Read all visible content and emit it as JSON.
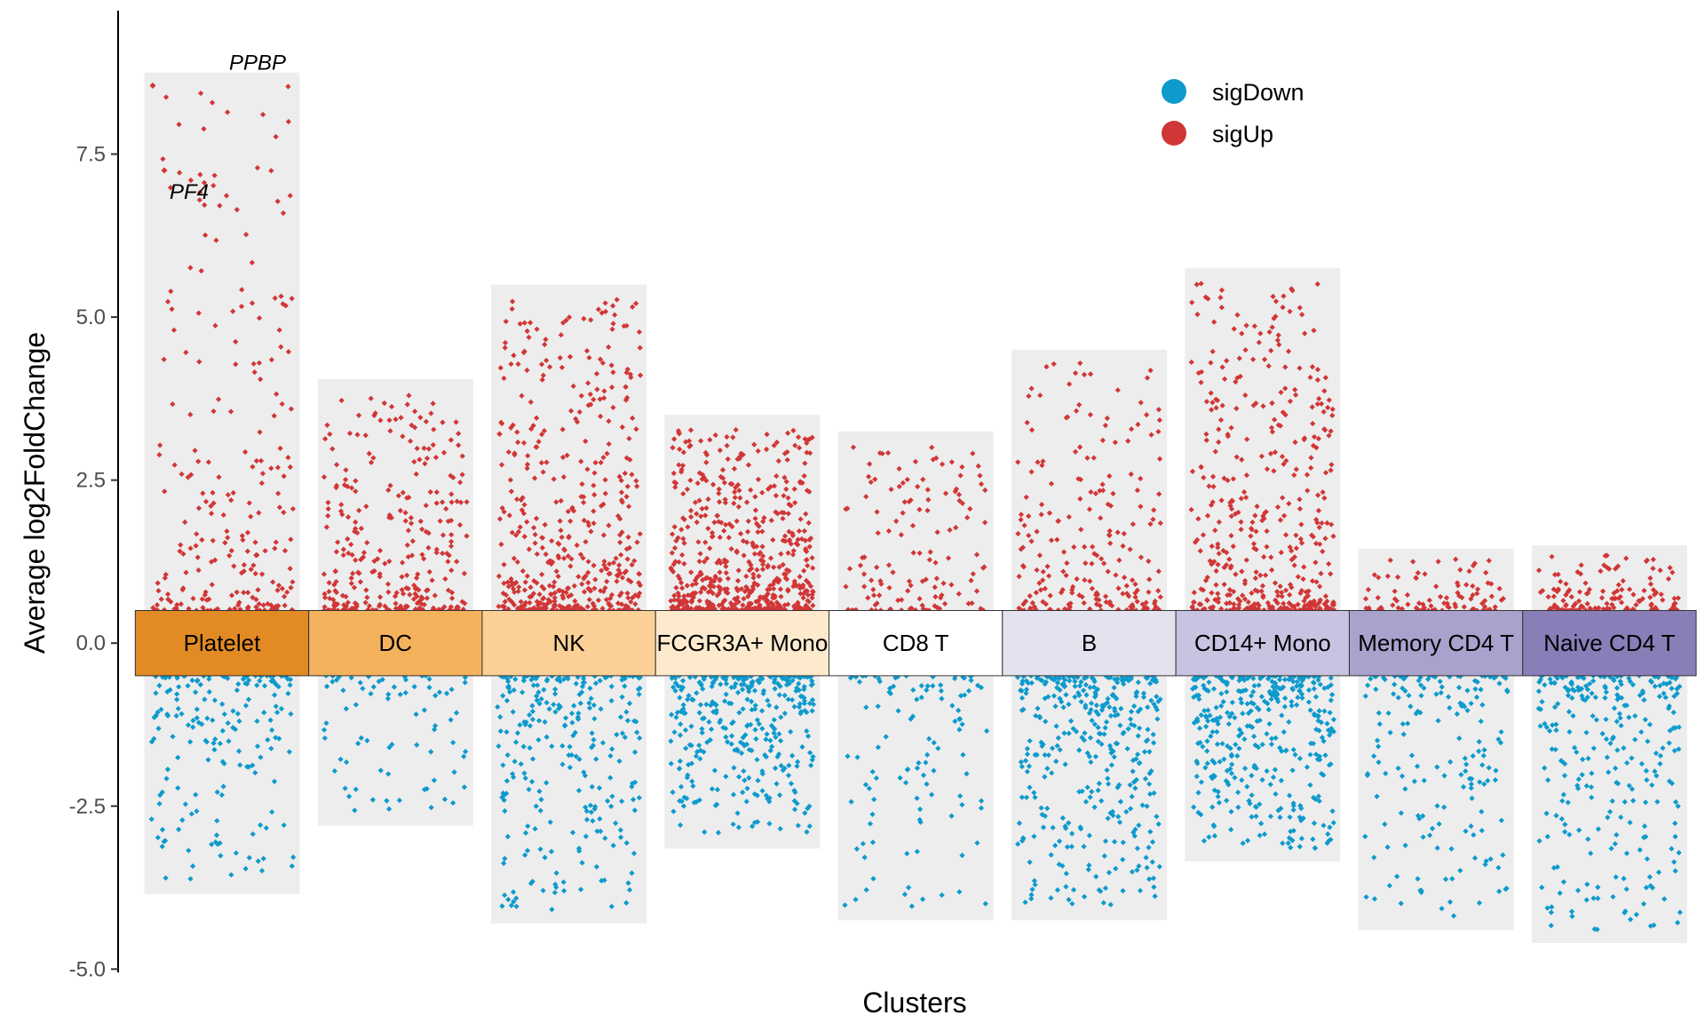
{
  "chart_data": {
    "type": "scatter",
    "title": "",
    "xlabel": "Clusters",
    "ylabel": "Average log2FoldChange",
    "ylim": [
      -5.05,
      9.7
    ],
    "yticks": [
      {
        "value": 7.5,
        "label": "7.5"
      },
      {
        "value": 5.0,
        "label": "5.0"
      },
      {
        "value": 2.5,
        "label": "2.5"
      },
      {
        "value": 0.0,
        "label": "0.0"
      },
      {
        "value": -2.5,
        "label": "-2.5"
      },
      {
        "value": -5.0,
        "label": "-5.0"
      }
    ],
    "grid": false,
    "legend": {
      "position": "top-right",
      "entries": [
        {
          "label": "sigDown",
          "color": "#0E9ACD"
        },
        {
          "label": "sigUp",
          "color": "#D13636"
        }
      ]
    },
    "label_band": {
      "ymin": -0.5,
      "ymax": 0.5
    },
    "clusters": [
      {
        "name": "Platelet",
        "color": "#E28B24",
        "ymin": -3.85,
        "ymax": 8.75,
        "up_max": 8.55,
        "down_min": -3.65,
        "up_n": 230,
        "down_n": 180
      },
      {
        "name": "DC",
        "color": "#F5B25D",
        "ymin": -2.8,
        "ymax": 4.05,
        "up_max": 3.85,
        "down_min": -2.6,
        "up_n": 300,
        "down_n": 75
      },
      {
        "name": "NK",
        "color": "#FBD096",
        "ymin": -4.3,
        "ymax": 5.5,
        "up_max": 5.3,
        "down_min": -4.1,
        "up_n": 460,
        "down_n": 260
      },
      {
        "name": "FCGR3A+ Mono",
        "color": "#FDEACD",
        "ymin": -3.15,
        "ymax": 3.5,
        "up_max": 3.3,
        "down_min": -2.95,
        "up_n": 580,
        "down_n": 330
      },
      {
        "name": "CD8 T",
        "color": "#FFFFFF",
        "ymin": -4.25,
        "ymax": 3.25,
        "up_max": 3.05,
        "down_min": -4.05,
        "up_n": 130,
        "down_n": 110
      },
      {
        "name": "B",
        "color": "#E3E2EF",
        "ymin": -4.25,
        "ymax": 4.5,
        "up_max": 4.3,
        "down_min": -4.05,
        "up_n": 220,
        "down_n": 360
      },
      {
        "name": "CD14+ Mono",
        "color": "#C7C3E1",
        "ymin": -3.35,
        "ymax": 5.75,
        "up_max": 5.55,
        "down_min": -3.15,
        "up_n": 420,
        "down_n": 370
      },
      {
        "name": "Memory CD4 T",
        "color": "#A9A2CD",
        "ymin": -4.4,
        "ymax": 1.45,
        "up_max": 1.3,
        "down_min": -4.2,
        "up_n": 90,
        "down_n": 170
      },
      {
        "name": "Naive CD4 T",
        "color": "#8A7EB9",
        "ymin": -4.6,
        "ymax": 1.5,
        "up_max": 1.35,
        "down_min": -4.4,
        "up_n": 140,
        "down_n": 270
      }
    ],
    "annotations": [
      {
        "gene": "PPBP",
        "cluster": "Platelet",
        "y": 8.55
      },
      {
        "gene": "PF4",
        "cluster": "Platelet",
        "y": 7.25
      }
    ]
  }
}
